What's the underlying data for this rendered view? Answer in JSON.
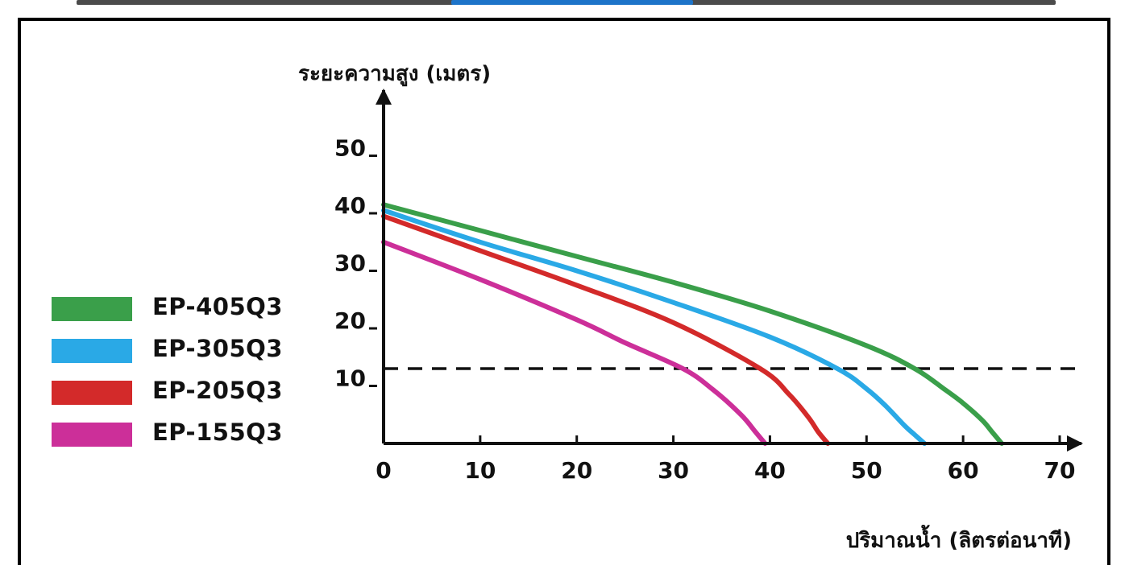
{
  "chart_data": {
    "type": "line",
    "title": "",
    "xlabel": "ปริมาณน้ำ (ลิตรต่อนาที)",
    "ylabel": "ระยะความสูง (เมตร)",
    "xlim": [
      0,
      70
    ],
    "ylim": [
      0,
      55
    ],
    "x_ticks": [
      0,
      10,
      20,
      30,
      40,
      50,
      60,
      70
    ],
    "y_ticks": [
      10,
      20,
      30,
      40,
      50
    ],
    "grid": false,
    "legend_position": "left",
    "reference_line": {
      "y": 13,
      "style": "dashed",
      "color": "#111111"
    },
    "series": [
      {
        "name": "EP-405Q3",
        "color": "#3a9f4a",
        "x": [
          0,
          10,
          20,
          30,
          40,
          50,
          55,
          58,
          60,
          62,
          63,
          64
        ],
        "y": [
          41.5,
          37,
          32.5,
          28,
          23,
          17,
          13,
          9.5,
          7,
          4,
          2,
          0
        ]
      },
      {
        "name": "EP-305Q3",
        "color": "#2aa9e6",
        "x": [
          0,
          10,
          20,
          30,
          40,
          47,
          50,
          52,
          54,
          55,
          56
        ],
        "y": [
          40.5,
          35,
          30,
          24.5,
          18.5,
          13,
          9.5,
          6.5,
          3,
          1.5,
          0
        ]
      },
      {
        "name": "EP-205Q3",
        "color": "#d32a2a",
        "x": [
          0,
          10,
          20,
          30,
          39,
          42,
          44,
          45,
          46
        ],
        "y": [
          39.5,
          33.5,
          27.5,
          21,
          13,
          8.5,
          4.5,
          2,
          0
        ]
      },
      {
        "name": "EP-155Q3",
        "color": "#cc2f99",
        "x": [
          0,
          10,
          20,
          25,
          31,
          34,
          37,
          38.5,
          39.5
        ],
        "y": [
          35,
          28.5,
          21.5,
          17.5,
          13,
          9.5,
          5,
          2,
          0
        ]
      }
    ]
  }
}
